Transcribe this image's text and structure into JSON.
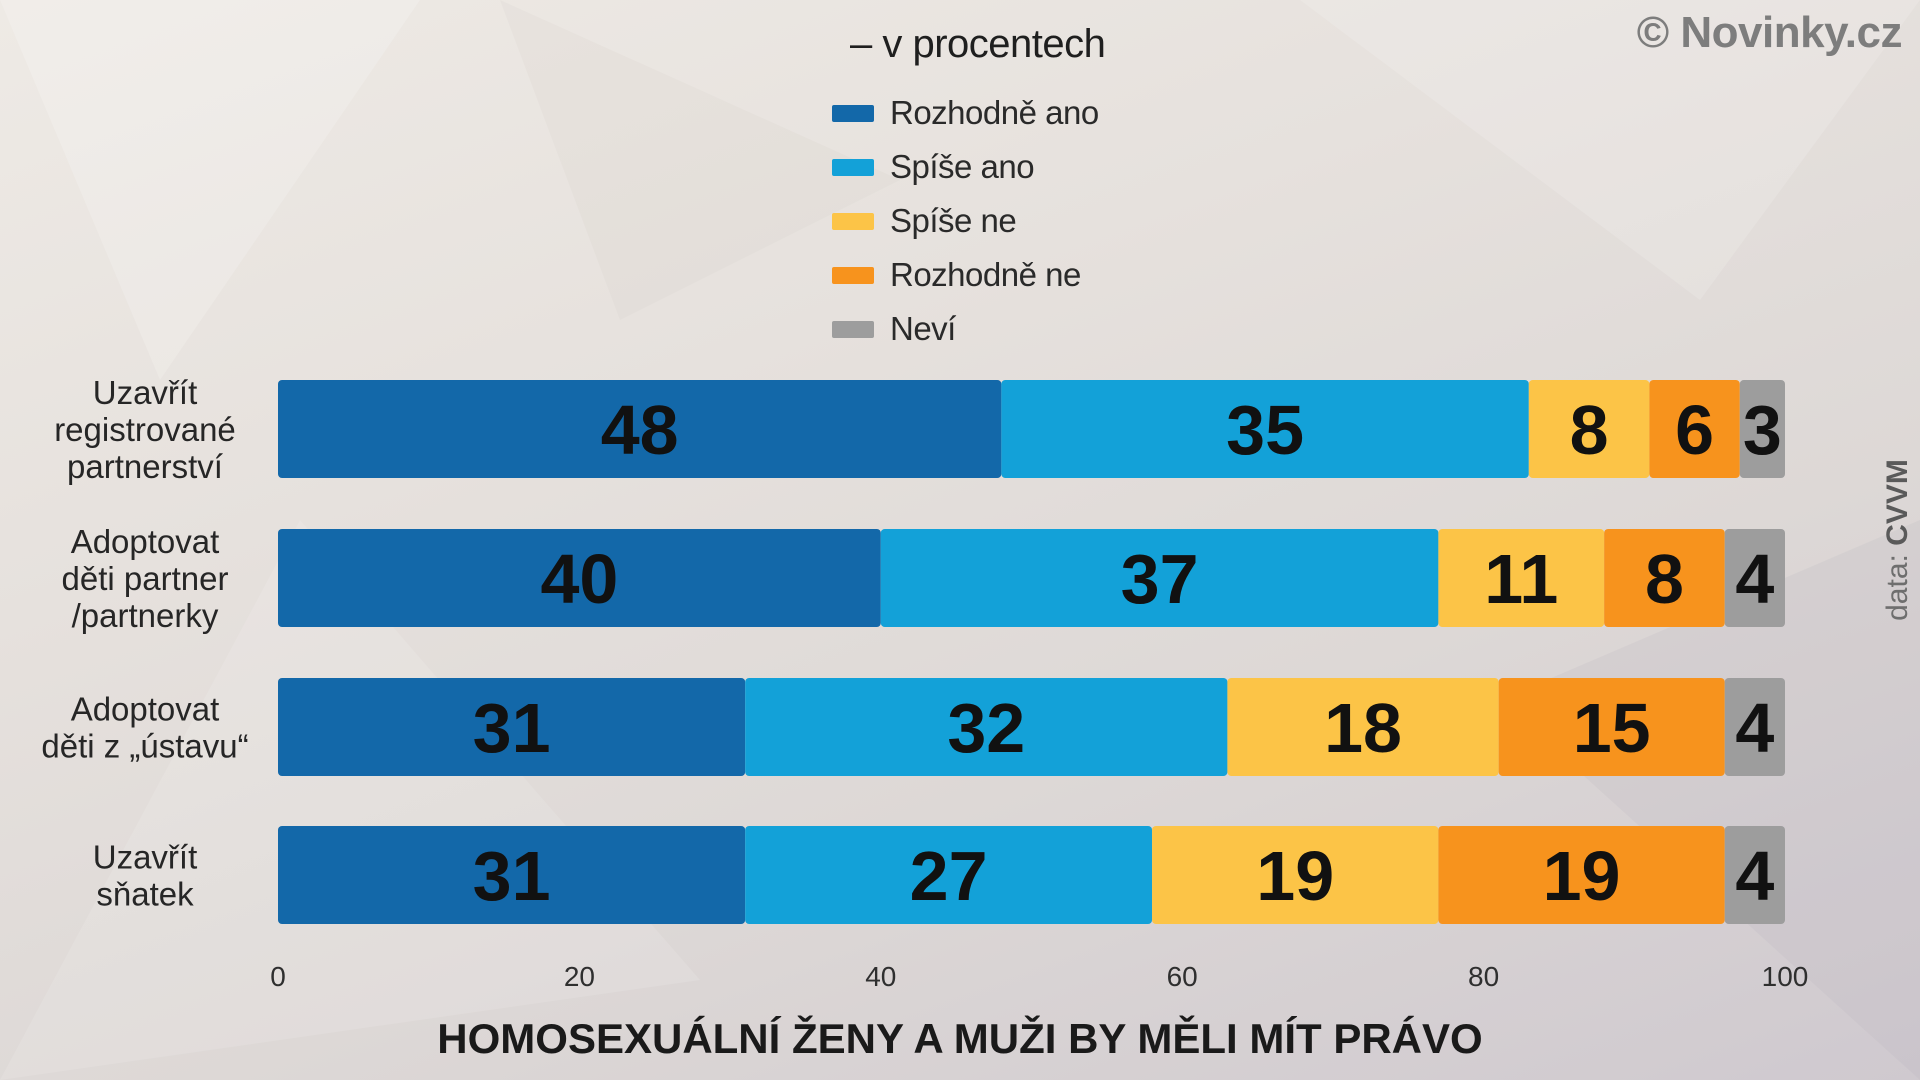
{
  "credit": "© Novinky.cz",
  "source": {
    "prefix": "data: ",
    "name": "CVVM"
  },
  "unit": "– v procentech",
  "colors": {
    "Rozhodně ano": "#1368a9",
    "Spíše ano": "#13a1d8",
    "Spíše ne": "#fcc447",
    "Rozhodně ne": "#f7931d",
    "Neví": "#9d9d9d"
  },
  "legend": [
    "Rozhodně ano",
    "Spíše ano",
    "Spíše ne",
    "Rozhodně ne",
    "Neví"
  ],
  "chart_data": {
    "type": "bar",
    "orientation": "horizontal",
    "stacked": true,
    "title": "HOMOSEXUÁLNÍ ŽENY A MUŽI BY MĚLI MÍT PRÁVO",
    "categories": [
      [
        "Uzavřít",
        "registrované",
        "partnerství"
      ],
      [
        "Adoptovat",
        "děti partner",
        "/partnerky"
      ],
      [
        "Adoptovat",
        "děti z „ústavu“"
      ],
      [
        "Uzavřít",
        "sňatek"
      ]
    ],
    "series": [
      {
        "name": "Rozhodně ano",
        "values": [
          48,
          40,
          31,
          31
        ]
      },
      {
        "name": "Spíše ano",
        "values": [
          35,
          37,
          32,
          27
        ]
      },
      {
        "name": "Spíše ne",
        "values": [
          8,
          11,
          18,
          19
        ]
      },
      {
        "name": "Rozhodně ne",
        "values": [
          6,
          8,
          15,
          19
        ]
      },
      {
        "name": "Neví",
        "values": [
          3,
          4,
          4,
          4
        ]
      }
    ],
    "xlim": [
      0,
      100
    ],
    "xticks": [
      0,
      20,
      40,
      60,
      80,
      100
    ],
    "grid": false,
    "legend_position": "top"
  }
}
